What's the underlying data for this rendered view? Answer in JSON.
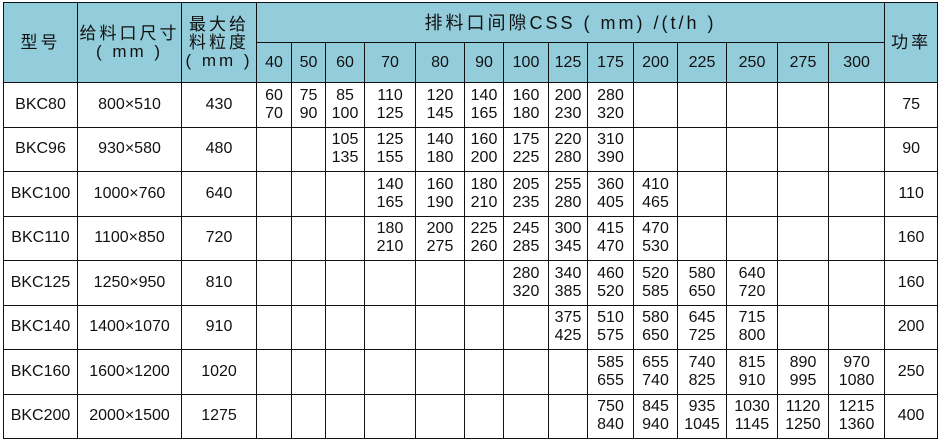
{
  "header": {
    "model": "型号",
    "feed_size": [
      "给料口尺寸",
      "( mm )"
    ],
    "max_feed": [
      "最大给",
      "料粒度",
      "( mm )"
    ],
    "css": "排料口间隙CSS ( mm) /(t/h )",
    "power": "功率",
    "css_columns": [
      "40",
      "50",
      "60",
      "70",
      "80",
      "90",
      "100",
      "125",
      "175",
      "200",
      "225",
      "250",
      "275",
      "300"
    ]
  },
  "rows": [
    {
      "model": "BKC80",
      "feed": "800×510",
      "max": "430",
      "power": "75",
      "cells": [
        [
          "60",
          "70"
        ],
        [
          "75",
          "90"
        ],
        [
          "85",
          "100"
        ],
        [
          "110",
          "125"
        ],
        [
          "120",
          "145"
        ],
        [
          "140",
          "165"
        ],
        [
          "160",
          "180"
        ],
        [
          "200",
          "230"
        ],
        [
          "280",
          "320"
        ],
        null,
        null,
        null,
        null,
        null
      ]
    },
    {
      "model": "BKC96",
      "feed": "930×580",
      "max": "480",
      "power": "90",
      "cells": [
        null,
        null,
        [
          "105",
          "135"
        ],
        [
          "125",
          "155"
        ],
        [
          "140",
          "180"
        ],
        [
          "160",
          "200"
        ],
        [
          "175",
          "225"
        ],
        [
          "220",
          "280"
        ],
        [
          "310",
          "390"
        ],
        null,
        null,
        null,
        null,
        null
      ]
    },
    {
      "model": "BKC100",
      "feed": "1000×760",
      "max": "640",
      "power": "110",
      "cells": [
        null,
        null,
        null,
        [
          "140",
          "165"
        ],
        [
          "160",
          "190"
        ],
        [
          "180",
          "210"
        ],
        [
          "205",
          "235"
        ],
        [
          "255",
          "280"
        ],
        [
          "360",
          "405"
        ],
        [
          "410",
          "465"
        ],
        null,
        null,
        null,
        null
      ]
    },
    {
      "model": "BKC110",
      "feed": "1100×850",
      "max": "720",
      "power": "160",
      "cells": [
        null,
        null,
        null,
        [
          "180",
          "210"
        ],
        [
          "200",
          "275"
        ],
        [
          "225",
          "260"
        ],
        [
          "245",
          "285"
        ],
        [
          "300",
          "345"
        ],
        [
          "415",
          "470"
        ],
        [
          "470",
          "530"
        ],
        null,
        null,
        null,
        null
      ]
    },
    {
      "model": "BKC125",
      "feed": "1250×950",
      "max": "810",
      "power": "160",
      "cells": [
        null,
        null,
        null,
        null,
        null,
        null,
        [
          "280",
          "320"
        ],
        [
          "340",
          "385"
        ],
        [
          "460",
          "520"
        ],
        [
          "520",
          "585"
        ],
        [
          "580",
          "650"
        ],
        [
          "640",
          "720"
        ],
        null,
        null
      ]
    },
    {
      "model": "BKC140",
      "feed": "1400×1070",
      "max": "910",
      "power": "200",
      "cells": [
        null,
        null,
        null,
        null,
        null,
        null,
        null,
        [
          "375",
          "425"
        ],
        [
          "510",
          "575"
        ],
        [
          "580",
          "650"
        ],
        [
          "645",
          "725"
        ],
        [
          "715",
          "800"
        ],
        null,
        null
      ]
    },
    {
      "model": "BKC160",
      "feed": "1600×1200",
      "max": "1020",
      "power": "250",
      "cells": [
        null,
        null,
        null,
        null,
        null,
        null,
        null,
        null,
        [
          "585",
          "655"
        ],
        [
          "655",
          "740"
        ],
        [
          "740",
          "825"
        ],
        [
          "815",
          "910"
        ],
        [
          "890",
          "995"
        ],
        [
          "970",
          "1080"
        ]
      ]
    },
    {
      "model": "BKC200",
      "feed": "2000×1500",
      "max": "1275",
      "power": "400",
      "cells": [
        null,
        null,
        null,
        null,
        null,
        null,
        null,
        null,
        [
          "750",
          "840"
        ],
        [
          "845",
          "940"
        ],
        [
          "935",
          "1045"
        ],
        [
          "1030",
          "1145"
        ],
        [
          "1120",
          "1250"
        ],
        [
          "1215",
          "1360"
        ]
      ]
    }
  ],
  "colors": {
    "header_bg": "#93cddb"
  }
}
